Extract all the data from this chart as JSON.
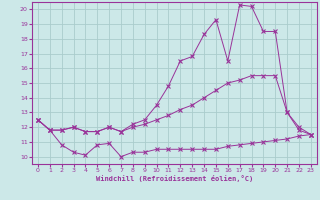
{
  "xlabel": "Windchill (Refroidissement éolien,°C)",
  "bg_color": "#cce8e8",
  "grid_color": "#aacccc",
  "line_color": "#993399",
  "xlim": [
    -0.5,
    23.5
  ],
  "ylim": [
    9.5,
    20.5
  ],
  "yticks": [
    10,
    11,
    12,
    13,
    14,
    15,
    16,
    17,
    18,
    19,
    20
  ],
  "xticks": [
    0,
    1,
    2,
    3,
    4,
    5,
    6,
    7,
    8,
    9,
    10,
    11,
    12,
    13,
    14,
    15,
    16,
    17,
    18,
    19,
    20,
    21,
    22,
    23
  ],
  "series1_x": [
    0,
    1,
    2,
    3,
    4,
    5,
    6,
    7,
    8,
    9,
    10,
    11,
    12,
    13,
    14,
    15,
    16,
    17,
    18,
    19,
    20,
    21,
    22,
    23
  ],
  "series1_y": [
    12.5,
    11.8,
    10.8,
    10.3,
    10.1,
    10.8,
    10.9,
    10.0,
    10.3,
    10.3,
    10.5,
    10.5,
    10.5,
    10.5,
    10.5,
    10.5,
    10.7,
    10.8,
    10.9,
    11.0,
    11.1,
    11.2,
    11.4,
    11.5
  ],
  "series2_x": [
    0,
    1,
    2,
    3,
    4,
    5,
    6,
    7,
    8,
    9,
    10,
    11,
    12,
    13,
    14,
    15,
    16,
    17,
    18,
    19,
    20,
    21,
    22,
    23
  ],
  "series2_y": [
    12.5,
    11.8,
    11.8,
    12.0,
    11.7,
    11.7,
    12.0,
    11.7,
    12.0,
    12.2,
    12.5,
    12.8,
    13.2,
    13.5,
    14.0,
    14.5,
    15.0,
    15.2,
    15.5,
    15.5,
    15.5,
    13.0,
    12.0,
    11.5
  ],
  "series3_x": [
    0,
    1,
    2,
    3,
    4,
    5,
    6,
    7,
    8,
    9,
    10,
    11,
    12,
    13,
    14,
    15,
    16,
    17,
    18,
    19,
    20,
    21,
    22,
    23
  ],
  "series3_y": [
    12.5,
    11.8,
    11.8,
    12.0,
    11.7,
    11.7,
    12.0,
    11.7,
    12.2,
    12.5,
    13.5,
    14.8,
    16.5,
    16.8,
    18.3,
    19.3,
    16.5,
    20.3,
    20.2,
    18.5,
    18.5,
    13.0,
    11.8,
    11.5
  ]
}
